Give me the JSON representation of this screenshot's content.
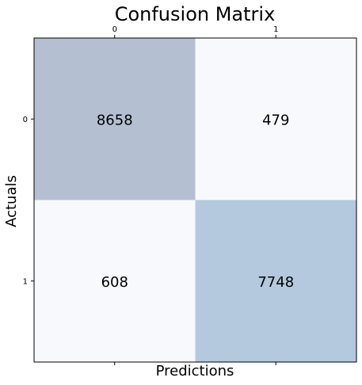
{
  "chart_data": {
    "type": "heatmap",
    "title": "Confusion Matrix",
    "xlabel": "Predictions",
    "ylabel": "Actuals",
    "x_categories": [
      "0",
      "1"
    ],
    "y_categories": [
      "0",
      "1"
    ],
    "x_tick_position": "top",
    "values": [
      [
        8658,
        479
      ],
      [
        608,
        7748
      ]
    ],
    "colors": {
      "background": "#ffffff",
      "cell_colors": [
        [
          "#b4c0d2",
          "#f7f9fc"
        ],
        [
          "#f7f9fc",
          "#b4c9de"
        ]
      ],
      "text": "#000000",
      "frame": "#000000"
    },
    "grid": false
  }
}
